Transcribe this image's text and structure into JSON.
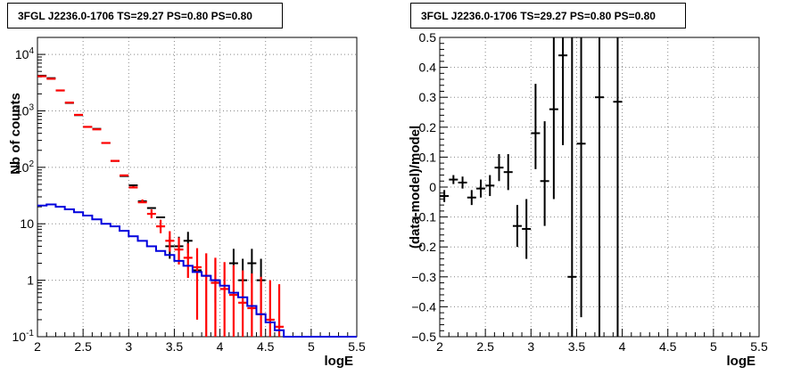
{
  "chart_data": [
    {
      "type": "scatter",
      "title": "3FGL J2236.0-1706 TS=29.27 PS=0.80 PS=0.80",
      "xlabel": "logE",
      "ylabel": "Nb of counts",
      "xlim": [
        2,
        5.5
      ],
      "ylim": [
        0.1,
        20000
      ],
      "yscale": "log",
      "grid": true,
      "x_ticks": [
        "2",
        "2.5",
        "3",
        "3.5",
        "4",
        "4.5",
        "5",
        "5.5"
      ],
      "y_ticks": [
        "10^4",
        "10^3",
        "10^2",
        "10",
        "1",
        "10^-1"
      ],
      "series": [
        {
          "color": "#000000",
          "x": [
            2.05,
            2.15,
            2.25,
            2.35,
            2.45,
            2.55,
            2.65,
            2.75,
            2.85,
            2.95,
            3.05,
            3.15,
            3.25,
            3.35,
            3.45,
            3.55,
            3.65,
            3.75,
            3.85,
            3.95,
            4.05,
            4.15,
            4.25,
            4.35,
            4.45
          ],
          "y": [
            4200,
            3800,
            2300,
            1380,
            840,
            520,
            480,
            270,
            130,
            70,
            48,
            25,
            19,
            13,
            4,
            4,
            5,
            1.5,
            0,
            1,
            0,
            2,
            1,
            2,
            1
          ],
          "yerr_low": [
            0,
            0,
            0,
            0,
            0,
            0,
            0,
            0,
            0,
            0,
            0,
            0,
            0,
            0,
            1.6,
            1.6,
            2,
            0.9,
            0,
            0.6,
            0,
            1.1,
            0.7,
            1.1,
            0.7
          ],
          "yerr_high": [
            0,
            0,
            0,
            0,
            0,
            0,
            0,
            0,
            0,
            0,
            0,
            0,
            0,
            0,
            1.9,
            1.9,
            2.2,
            1.4,
            0,
            1.3,
            0,
            1.6,
            1.4,
            1.6,
            1.4
          ]
        },
        {
          "color": "#ff0000",
          "x": [
            2.05,
            2.15,
            2.25,
            2.35,
            2.45,
            2.55,
            2.65,
            2.75,
            2.85,
            2.95,
            3.05,
            3.15,
            3.25,
            3.35,
            3.45,
            3.55,
            3.65,
            3.75,
            3.85,
            3.95,
            4.05,
            4.15,
            4.25,
            4.35,
            4.45,
            4.55,
            4.65
          ],
          "y": [
            4100,
            3700,
            2300,
            1400,
            850,
            520,
            470,
            270,
            130,
            72,
            44,
            24,
            15,
            9,
            5,
            3.5,
            2.5,
            1.7,
            1.2,
            0.9,
            0.7,
            0.55,
            0.4,
            0.32,
            0.25,
            0.2,
            0.15
          ],
          "yerr_low": [
            0,
            0,
            0,
            0,
            0,
            0,
            0,
            0,
            0,
            0,
            0,
            0,
            2.5,
            2.2,
            1.8,
            1.6,
            1.4,
            1.5,
            1.15,
            0.9,
            0.7,
            0.55,
            0.4,
            0.32,
            0.25,
            0.2,
            0.15
          ],
          "yerr_high": [
            0,
            0,
            0,
            0,
            0,
            0,
            0,
            0,
            2,
            2,
            2.5,
            3,
            3,
            2.8,
            2.4,
            2.2,
            2,
            2,
            1.8,
            1.6,
            1.4,
            1.3,
            1.1,
            1,
            0.9,
            0.8,
            0.7
          ]
        },
        {
          "color": "#0000dd",
          "x": [
            2.0,
            2.1,
            2.2,
            2.3,
            2.4,
            2.5,
            2.6,
            2.7,
            2.8,
            2.9,
            3.0,
            3.1,
            3.2,
            3.3,
            3.4,
            3.5,
            3.6,
            3.7,
            3.8,
            3.9,
            4.0,
            4.1,
            4.2,
            4.3,
            4.4,
            4.5,
            4.6,
            4.7,
            4.8,
            4.9,
            5.0,
            5.1,
            5.2,
            5.3,
            5.4,
            5.5
          ],
          "y": [
            21,
            22,
            20,
            18,
            16,
            14,
            12,
            10,
            9,
            7.5,
            6,
            5,
            4,
            3.3,
            2.8,
            2.2,
            1.8,
            1.4,
            1.2,
            1.0,
            0.8,
            0.6,
            0.5,
            0.35,
            0.25,
            0.18,
            0.13,
            0.1,
            0.1,
            0.1,
            0.1,
            0.1,
            0.1,
            0.1,
            0.1,
            0.1
          ],
          "step": true
        }
      ]
    },
    {
      "type": "scatter",
      "title": "3FGL J2236.0-1706 TS=29.27 PS=0.80 PS=0.80",
      "xlabel": "logE",
      "ylabel": "(data-model)/model",
      "xlim": [
        2,
        5.5
      ],
      "ylim": [
        -0.5,
        0.5
      ],
      "grid": true,
      "x_ticks": [
        "2",
        "2.5",
        "3",
        "3.5",
        "4",
        "4.5",
        "5",
        "5.5"
      ],
      "y_ticks": [
        "0.5",
        "0.4",
        "0.3",
        "0.2",
        "0.1",
        "0",
        "−0.1",
        "−0.2",
        "−0.3",
        "−0.4",
        "−0.5"
      ],
      "series": [
        {
          "color": "#000000",
          "x": [
            2.05,
            2.15,
            2.25,
            2.35,
            2.45,
            2.55,
            2.65,
            2.75,
            2.85,
            2.95,
            3.05,
            3.15,
            3.25,
            3.35,
            3.45,
            3.55,
            3.75,
            3.95
          ],
          "y": [
            -0.03,
            0.025,
            0.015,
            -0.035,
            -0.005,
            0.005,
            0.065,
            0.05,
            -0.13,
            -0.14,
            0.18,
            0.02,
            0.26,
            0.44,
            -0.3,
            0.145,
            0.3,
            0.285
          ],
          "yerr_low": [
            0.02,
            0.015,
            0.02,
            0.025,
            0.03,
            0.035,
            0.045,
            0.06,
            0.07,
            0.1,
            0.12,
            0.15,
            0.3,
            0.3,
            0.2,
            0.58,
            0.8,
            0.785
          ],
          "yerr_high": [
            0.02,
            0.015,
            0.02,
            0.025,
            0.03,
            0.035,
            0.045,
            0.06,
            0.07,
            0.1,
            0.165,
            0.2,
            0.24,
            0.06,
            0.8,
            0.355,
            0.2,
            0.215
          ]
        }
      ]
    }
  ]
}
